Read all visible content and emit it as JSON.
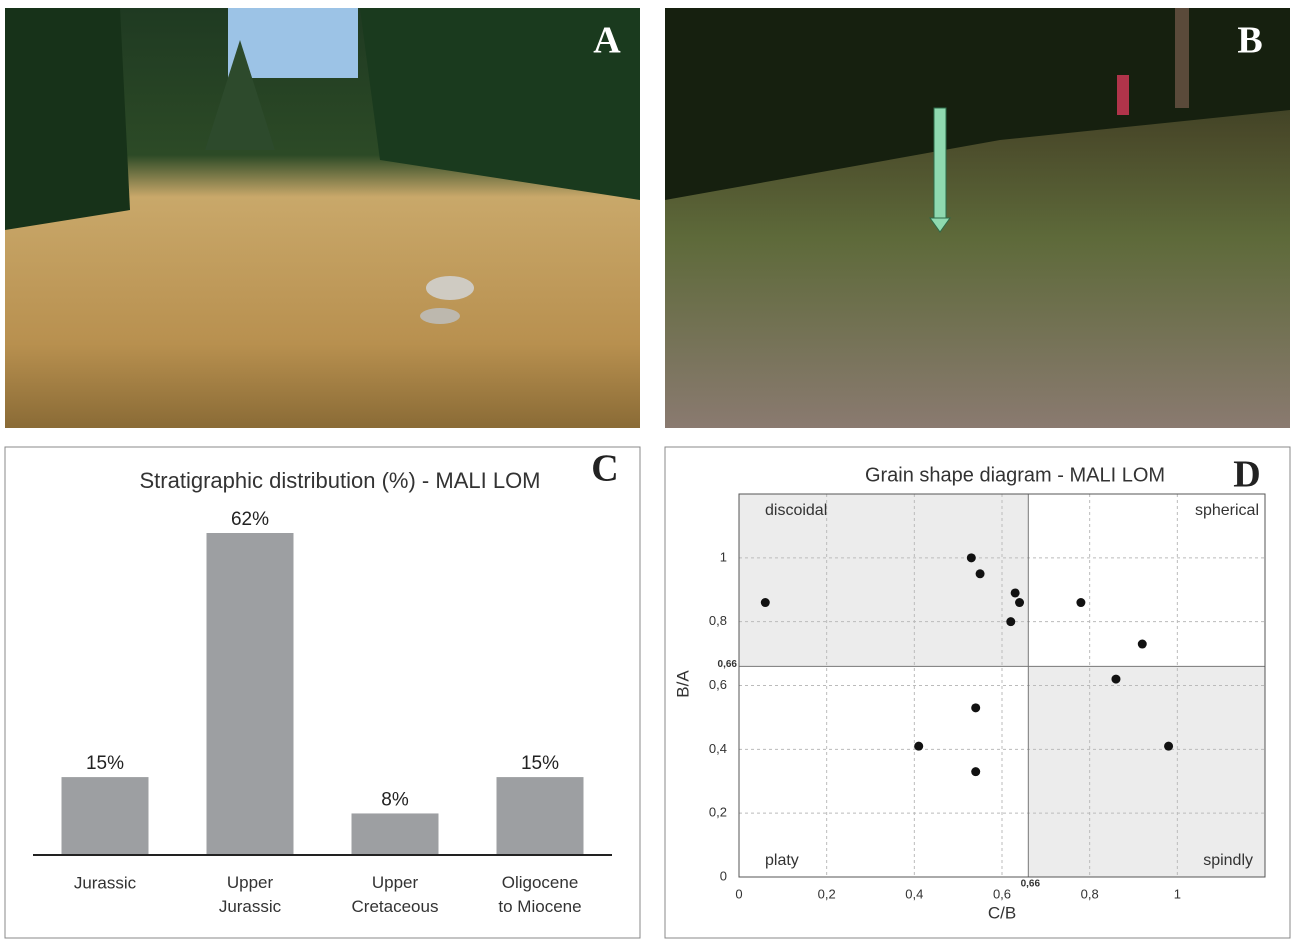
{
  "panel_labels": [
    "A",
    "B",
    "C",
    "D"
  ],
  "chart_data": [
    {
      "type": "bar",
      "title": "Stratigraphic distribution (%) - MALI LOM",
      "categories": [
        "Jurassic",
        "Upper Jurassic",
        "Upper Cretaceous",
        "Oligocene to Miocene"
      ],
      "values": [
        15,
        62,
        8,
        15
      ],
      "value_labels": [
        "15%",
        "62%",
        "8%",
        "15%"
      ],
      "color": "#9d9fa2"
    },
    {
      "type": "scatter",
      "title": "Grain shape diagram - MALI LOM",
      "x_label": "C/B",
      "y_label": "B/A",
      "x": [
        0.06,
        0.53,
        0.55,
        0.63,
        0.64,
        0.62,
        0.78,
        0.92,
        0.86,
        0.54,
        0.41,
        0.54,
        0.98
      ],
      "values": [
        0.86,
        1.0,
        0.95,
        0.89,
        0.86,
        0.8,
        0.86,
        0.73,
        0.62,
        0.53,
        0.41,
        0.33,
        0.41
      ],
      "color": "#111111",
      "xlim": [
        0,
        1.2
      ],
      "ylim": [
        0,
        1.2
      ],
      "xticks": [
        0,
        {
          "value": 0.2,
          "label": "0,2"
        },
        {
          "value": 0.4,
          "label": "0,4"
        },
        {
          "value": 0.6,
          "label": "0,6"
        },
        {
          "value": 0.8,
          "label": "0,8"
        },
        1
      ],
      "yticks": [
        0,
        {
          "value": 0.2,
          "label": "0,2"
        },
        {
          "value": 0.4,
          "label": "0,4"
        },
        {
          "value": 0.6,
          "label": "0,6"
        },
        {
          "value": 0.8,
          "label": "0,8"
        },
        1
      ],
      "x_threshold": {
        "value": 0.66,
        "label": "0,66"
      },
      "y_threshold": {
        "value": 0.66,
        "label": "0,66"
      },
      "quadrant_labels": [
        "discoidal",
        "spherical",
        "platy",
        "spindly"
      ],
      "grid": true
    }
  ]
}
